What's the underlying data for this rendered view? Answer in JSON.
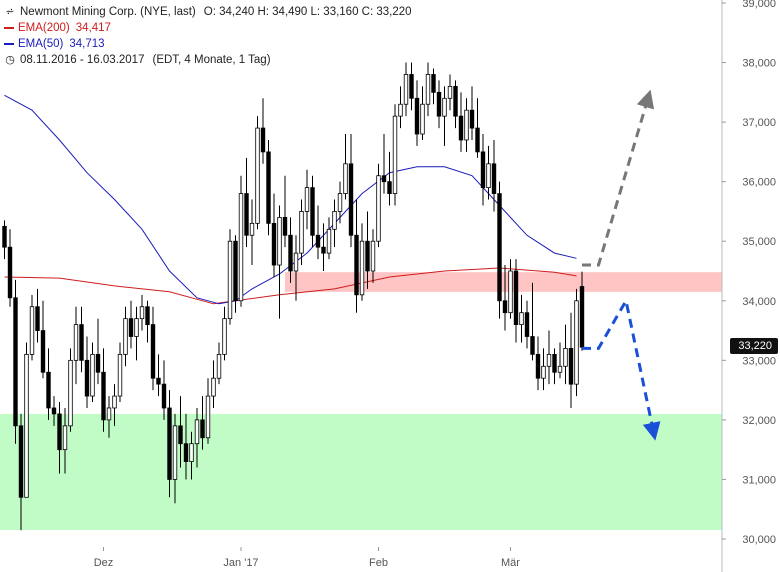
{
  "legend": {
    "title": "Newmont Mining Corp. (NYE, last)",
    "ohlc": "O: 34,240  H: 34,490  L: 33,160  C: 33,220",
    "ema200_label": "EMA(200)",
    "ema200_value": "34,417",
    "ema50_label": "EMA(50)",
    "ema50_value": "34,713",
    "range": "08.11.2016 - 16.03.2017",
    "range_detail": "(EDT, 4 Monate, 1 Tag)",
    "icon_chart": "candles-icon",
    "icon_clock": "clock-icon"
  },
  "last_price": "33,220",
  "colors": {
    "ema200": "#d01c1c",
    "ema50": "#1c1cb8",
    "resistance_zone": "#ffc4c4",
    "support_zone": "#c1fcc6",
    "arrow_up": "#777777",
    "arrow_down": "#1a4fd8",
    "candle": "#000000"
  },
  "chart_data": {
    "type": "candlestick",
    "title": "Newmont Mining Corp. (NYE, last)",
    "y_axis": {
      "min": 30000,
      "max": 39000,
      "ticks": [
        "30,000",
        "31,000",
        "32,000",
        "33,000",
        "34,000",
        "35,000",
        "36,000",
        "37,000",
        "38,000",
        "39,000"
      ],
      "tick_values": [
        30000,
        31000,
        32000,
        33000,
        34000,
        35000,
        36000,
        37000,
        38000,
        39000
      ]
    },
    "x_axis": {
      "labels": [
        "Dez",
        "Jan '17",
        "Feb",
        "Mär"
      ]
    },
    "zones": [
      {
        "name": "resistance",
        "from": 34150,
        "to": 34480
      },
      {
        "name": "support",
        "from": 30150,
        "to": 32100
      }
    ],
    "candles": [
      [
        35250,
        35350,
        34700,
        34900
      ],
      [
        34900,
        35200,
        33900,
        34050
      ],
      [
        34050,
        34350,
        31600,
        31900
      ],
      [
        31900,
        32100,
        30150,
        30700
      ],
      [
        30700,
        33300,
        30700,
        33100
      ],
      [
        33100,
        34100,
        33000,
        33900
      ],
      [
        33900,
        34200,
        33300,
        33500
      ],
      [
        33500,
        34000,
        32700,
        32800
      ],
      [
        32800,
        33200,
        32000,
        32200
      ],
      [
        32200,
        32400,
        31900,
        32100
      ],
      [
        32100,
        32300,
        31100,
        31500
      ],
      [
        31500,
        32200,
        31100,
        31900
      ],
      [
        31900,
        33200,
        31800,
        33000
      ],
      [
        33000,
        33900,
        32600,
        33600
      ],
      [
        33600,
        33900,
        32800,
        33000
      ],
      [
        33000,
        33400,
        32200,
        32400
      ],
      [
        32400,
        33300,
        32300,
        33100
      ],
      [
        33100,
        33700,
        32600,
        32800
      ],
      [
        32800,
        33200,
        31800,
        32000
      ],
      [
        32000,
        32400,
        31700,
        32200
      ],
      [
        32200,
        32600,
        31900,
        32400
      ],
      [
        32400,
        33300,
        32300,
        33100
      ],
      [
        33100,
        33900,
        32900,
        33700
      ],
      [
        33700,
        34000,
        33200,
        33400
      ],
      [
        33400,
        33900,
        33000,
        33700
      ],
      [
        33700,
        34100,
        33500,
        33900
      ],
      [
        33900,
        34000,
        33300,
        33600
      ],
      [
        33600,
        33900,
        32500,
        32700
      ],
      [
        32700,
        33100,
        32400,
        32600
      ],
      [
        32600,
        33000,
        32000,
        32200
      ],
      [
        32200,
        32500,
        30700,
        31000
      ],
      [
        31000,
        32100,
        30600,
        31900
      ],
      [
        31900,
        32400,
        31200,
        31600
      ],
      [
        31600,
        32100,
        31000,
        31300
      ],
      [
        31300,
        31800,
        31000,
        31600
      ],
      [
        31600,
        32200,
        31200,
        32000
      ],
      [
        32000,
        32400,
        31500,
        31700
      ],
      [
        31700,
        32700,
        31600,
        32400
      ],
      [
        32400,
        33000,
        32200,
        32700
      ],
      [
        32700,
        33300,
        32600,
        33100
      ],
      [
        33100,
        33900,
        33000,
        33700
      ],
      [
        33700,
        35200,
        33600,
        35000
      ],
      [
        35000,
        35100,
        33800,
        34000
      ],
      [
        34000,
        36100,
        33900,
        35800
      ],
      [
        35800,
        36400,
        34900,
        35100
      ],
      [
        35100,
        35700,
        34600,
        35300
      ],
      [
        35300,
        37100,
        35200,
        36900
      ],
      [
        36900,
        37400,
        36300,
        36500
      ],
      [
        36500,
        36700,
        35100,
        35300
      ],
      [
        35300,
        35800,
        34400,
        34600
      ],
      [
        34600,
        35600,
        33700,
        35400
      ],
      [
        35400,
        36100,
        34900,
        35100
      ],
      [
        35100,
        35400,
        34300,
        34500
      ],
      [
        34500,
        35100,
        34000,
        34800
      ],
      [
        34800,
        35700,
        34600,
        35500
      ],
      [
        35500,
        36200,
        35200,
        35900
      ],
      [
        35900,
        36100,
        34900,
        35100
      ],
      [
        35100,
        35600,
        34700,
        34900
      ],
      [
        34900,
        35300,
        34500,
        34800
      ],
      [
        34800,
        35400,
        34700,
        35200
      ],
      [
        35200,
        35700,
        34900,
        35500
      ],
      [
        35500,
        36000,
        35300,
        35800
      ],
      [
        35800,
        36800,
        35700,
        36300
      ],
      [
        36300,
        36800,
        34900,
        35100
      ],
      [
        35100,
        35700,
        33800,
        34100
      ],
      [
        34100,
        35300,
        34000,
        35000
      ],
      [
        35000,
        35500,
        34200,
        34500
      ],
      [
        34500,
        35200,
        34300,
        35000
      ],
      [
        35000,
        36300,
        34900,
        36100
      ],
      [
        36100,
        36800,
        35800,
        36000
      ],
      [
        36000,
        36500,
        35600,
        35800
      ],
      [
        35800,
        37300,
        35600,
        37100
      ],
      [
        37100,
        37600,
        36900,
        37300
      ],
      [
        37300,
        38000,
        37100,
        37800
      ],
      [
        37800,
        38000,
        37200,
        37400
      ],
      [
        37400,
        37700,
        36600,
        36800
      ],
      [
        36800,
        37600,
        36700,
        37300
      ],
      [
        37300,
        38000,
        37100,
        37800
      ],
      [
        37800,
        37900,
        37300,
        37500
      ],
      [
        37500,
        37700,
        36900,
        37100
      ],
      [
        37100,
        37600,
        36600,
        37400
      ],
      [
        37400,
        37800,
        37200,
        37600
      ],
      [
        37600,
        37700,
        36900,
        37100
      ],
      [
        37100,
        37500,
        36500,
        36700
      ],
      [
        36700,
        37400,
        36500,
        37200
      ],
      [
        37200,
        37600,
        36700,
        36900
      ],
      [
        36900,
        37400,
        36400,
        36500
      ],
      [
        36500,
        36800,
        35600,
        35900
      ],
      [
        35900,
        36600,
        35700,
        36300
      ],
      [
        36300,
        36700,
        35500,
        35800
      ],
      [
        35800,
        36000,
        33700,
        34000
      ],
      [
        34000,
        34600,
        33500,
        33800
      ],
      [
        33800,
        34700,
        33700,
        34500
      ],
      [
        34500,
        34700,
        33300,
        33600
      ],
      [
        33600,
        34100,
        33300,
        33800
      ],
      [
        33800,
        34000,
        33200,
        33400
      ],
      [
        33400,
        34300,
        33000,
        33100
      ],
      [
        33100,
        33400,
        32500,
        32700
      ],
      [
        32700,
        33200,
        32500,
        32900
      ],
      [
        32900,
        33500,
        32600,
        33100
      ],
      [
        33100,
        33200,
        32600,
        32800
      ],
      [
        32800,
        33300,
        32700,
        32900
      ],
      [
        32900,
        33600,
        32600,
        33200
      ],
      [
        33200,
        33800,
        32200,
        32600
      ],
      [
        32600,
        34200,
        32400,
        34000
      ],
      [
        34240,
        34490,
        33160,
        33220
      ]
    ],
    "ema50": [
      [
        0,
        37450
      ],
      [
        5,
        37200
      ],
      [
        10,
        36700
      ],
      [
        15,
        36150
      ],
      [
        20,
        35700
      ],
      [
        25,
        35200
      ],
      [
        30,
        34500
      ],
      [
        35,
        34050
      ],
      [
        39,
        33950
      ],
      [
        42,
        34000
      ],
      [
        45,
        34200
      ],
      [
        50,
        34450
      ],
      [
        55,
        34800
      ],
      [
        60,
        35300
      ],
      [
        65,
        35800
      ],
      [
        70,
        36150
      ],
      [
        75,
        36250
      ],
      [
        80,
        36250
      ],
      [
        85,
        36100
      ],
      [
        90,
        35600
      ],
      [
        95,
        35100
      ],
      [
        100,
        34800
      ],
      [
        104,
        34713
      ]
    ],
    "ema200": [
      [
        0,
        34400
      ],
      [
        10,
        34380
      ],
      [
        20,
        34250
      ],
      [
        30,
        34150
      ],
      [
        38,
        33950
      ],
      [
        42,
        34000
      ],
      [
        50,
        34100
      ],
      [
        60,
        34200
      ],
      [
        70,
        34400
      ],
      [
        80,
        34500
      ],
      [
        90,
        34550
      ],
      [
        100,
        34480
      ],
      [
        104,
        34417
      ]
    ],
    "forecast_up": [
      [
        105,
        34600
      ],
      [
        108,
        34600
      ],
      [
        117,
        37400
      ]
    ],
    "forecast_down": [
      [
        105,
        33200
      ],
      [
        108,
        33200
      ],
      [
        113,
        34000
      ],
      [
        118,
        31800
      ]
    ]
  }
}
